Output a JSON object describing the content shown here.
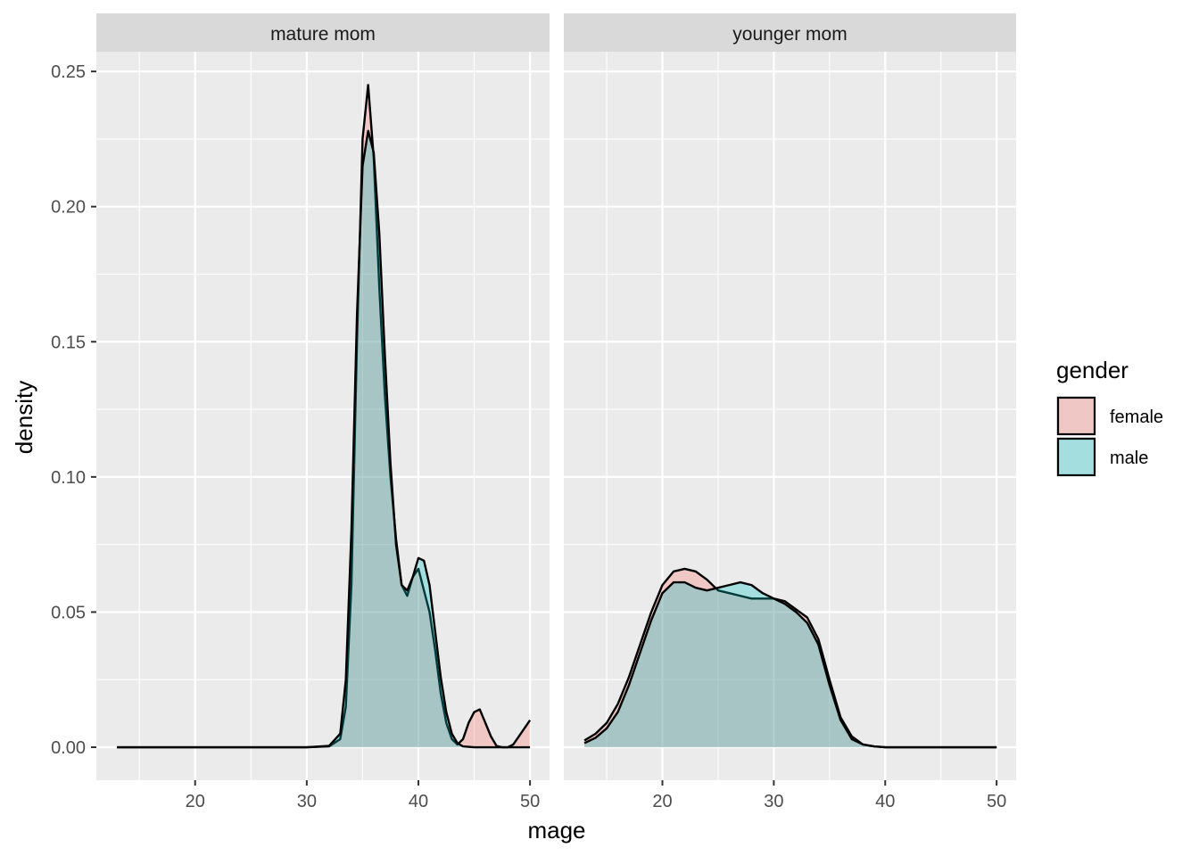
{
  "chart_data": {
    "type": "area",
    "subtype": "faceted density",
    "xlabel": "mage",
    "ylabel": "density",
    "xlim": [
      11.15,
      51.75
    ],
    "ylim": [
      -0.0122,
      0.2573
    ],
    "x_ticks": [
      20,
      30,
      40,
      50
    ],
    "y_ticks": [
      0.0,
      0.05,
      0.1,
      0.15,
      0.2,
      0.25
    ],
    "y_tick_labels": [
      "0.00",
      "0.05",
      "0.10",
      "0.15",
      "0.20",
      "0.25"
    ],
    "grid": true,
    "legend": {
      "title": "gender",
      "position": "right"
    },
    "colors": {
      "female": "#F8766D",
      "male": "#00BFC4",
      "panel_bg": "#EBEBEB",
      "strip_bg": "#D9D9D9",
      "grid": "#FFFFFF",
      "outline": "#000000"
    },
    "fill_alpha": 0.3,
    "facets": [
      {
        "label": "mature mom",
        "series": [
          {
            "name": "female",
            "x": [
              13,
              30,
              32,
              33,
              33.5,
              34,
              34.5,
              35,
              35.5,
              36,
              36.5,
              37,
              37.5,
              38,
              38.5,
              39,
              39.5,
              40,
              40.5,
              41,
              41.5,
              42,
              42.5,
              43,
              43.5,
              44,
              44.5,
              45,
              45.5,
              46,
              46.5,
              47,
              47.5,
              48,
              48.5,
              49,
              49.5,
              50
            ],
            "y": [
              0,
              0,
              0.0003,
              0.003,
              0.015,
              0.06,
              0.15,
              0.225,
              0.245,
              0.218,
              0.17,
              0.13,
              0.1,
              0.077,
              0.06,
              0.056,
              0.063,
              0.066,
              0.058,
              0.05,
              0.036,
              0.02,
              0.009,
              0.003,
              0.001,
              0.003,
              0.009,
              0.013,
              0.014,
              0.009,
              0.004,
              0.0005,
              0,
              0,
              0.001,
              0.004,
              0.007,
              0.01
            ]
          },
          {
            "name": "male",
            "x": [
              13,
              30,
              32,
              33,
              33.5,
              34,
              34.5,
              35,
              35.5,
              36,
              36.5,
              37,
              37.5,
              38,
              38.5,
              39,
              39.5,
              40,
              40.5,
              41,
              41.5,
              42,
              42.5,
              43,
              43.5,
              44,
              45,
              50
            ],
            "y": [
              0,
              0,
              0.0005,
              0.005,
              0.025,
              0.08,
              0.16,
              0.215,
              0.228,
              0.22,
              0.19,
              0.145,
              0.105,
              0.075,
              0.06,
              0.058,
              0.063,
              0.07,
              0.069,
              0.06,
              0.043,
              0.026,
              0.013,
              0.005,
              0.0015,
              0.0003,
              0,
              0
            ]
          }
        ]
      },
      {
        "label": "younger mom",
        "series": [
          {
            "name": "female",
            "x": [
              13,
              14,
              15,
              16,
              17,
              18,
              19,
              20,
              21,
              22,
              23,
              24,
              25,
              26,
              27,
              28,
              29,
              30,
              31,
              32,
              33,
              34,
              35,
              36,
              37,
              38,
              39,
              40,
              42,
              45,
              50
            ],
            "y": [
              0.0025,
              0.005,
              0.009,
              0.016,
              0.026,
              0.038,
              0.05,
              0.06,
              0.065,
              0.066,
              0.065,
              0.062,
              0.058,
              0.057,
              0.056,
              0.055,
              0.055,
              0.055,
              0.054,
              0.051,
              0.048,
              0.04,
              0.025,
              0.011,
              0.004,
              0.001,
              0.0003,
              0,
              0,
              0,
              0
            ]
          },
          {
            "name": "male",
            "x": [
              13,
              14,
              15,
              16,
              17,
              18,
              19,
              20,
              21,
              22,
              23,
              24,
              25,
              26,
              27,
              28,
              29,
              30,
              31,
              32,
              33,
              34,
              35,
              36,
              37,
              38,
              39,
              40,
              42,
              45,
              50
            ],
            "y": [
              0.0015,
              0.0035,
              0.007,
              0.013,
              0.023,
              0.035,
              0.047,
              0.057,
              0.061,
              0.061,
              0.059,
              0.058,
              0.059,
              0.06,
              0.061,
              0.06,
              0.057,
              0.055,
              0.053,
              0.05,
              0.046,
              0.038,
              0.023,
              0.01,
              0.003,
              0.001,
              0.0003,
              0,
              0,
              0,
              0
            ]
          }
        ]
      }
    ]
  }
}
